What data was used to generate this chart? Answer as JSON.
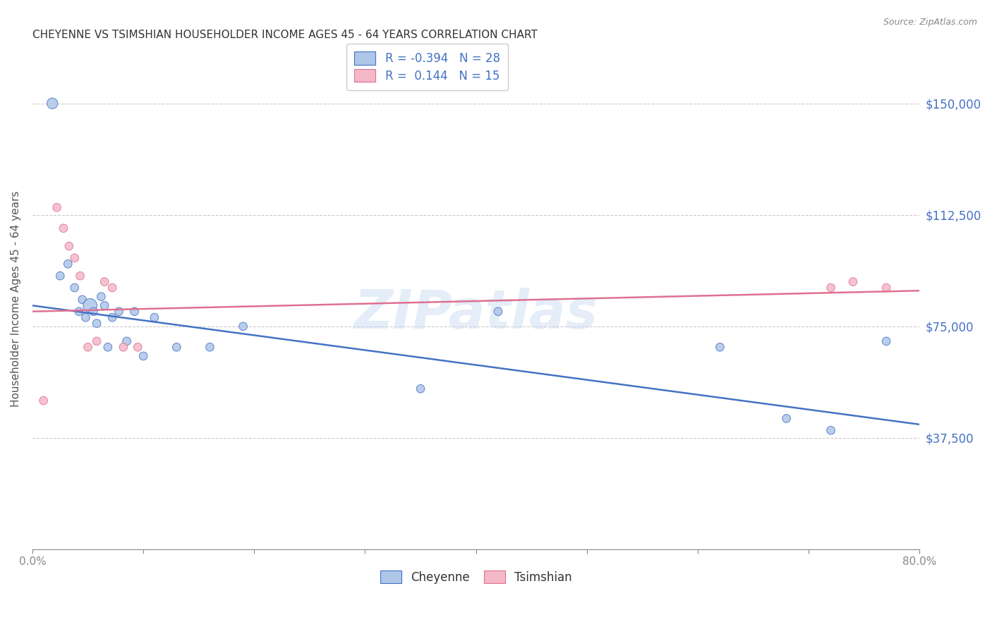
{
  "title": "CHEYENNE VS TSIMSHIAN HOUSEHOLDER INCOME AGES 45 - 64 YEARS CORRELATION CHART",
  "source": "Source: ZipAtlas.com",
  "ylabel": "Householder Income Ages 45 - 64 years",
  "ytick_labels": [
    "$37,500",
    "$75,000",
    "$112,500",
    "$150,000"
  ],
  "ytick_values": [
    37500,
    75000,
    112500,
    150000
  ],
  "ylim": [
    0,
    168750
  ],
  "xlim": [
    0.0,
    0.8
  ],
  "watermark": "ZIPatlas",
  "cheyenne_color": "#aec6e8",
  "tsimshian_color": "#f4b8c8",
  "cheyenne_edge_color": "#4472c4",
  "tsimshian_edge_color": "#e07090",
  "cheyenne_line_color": "#4472c4",
  "tsimshian_line_color": "#e07090",
  "cheyenne_R": -0.394,
  "cheyenne_N": 28,
  "tsimshian_R": 0.144,
  "tsimshian_N": 15,
  "cheyenne_x": [
    0.018,
    0.025,
    0.032,
    0.038,
    0.042,
    0.045,
    0.048,
    0.052,
    0.055,
    0.058,
    0.062,
    0.065,
    0.068,
    0.072,
    0.078,
    0.085,
    0.092,
    0.1,
    0.11,
    0.13,
    0.16,
    0.19,
    0.35,
    0.42,
    0.62,
    0.68,
    0.72,
    0.77
  ],
  "cheyenne_y": [
    150000,
    92000,
    96000,
    88000,
    80000,
    84000,
    78000,
    82000,
    80000,
    76000,
    85000,
    82000,
    68000,
    78000,
    80000,
    70000,
    80000,
    65000,
    78000,
    68000,
    68000,
    75000,
    54000,
    80000,
    68000,
    44000,
    40000,
    70000
  ],
  "cheyenne_sizes": [
    120,
    70,
    70,
    70,
    70,
    70,
    70,
    200,
    70,
    70,
    70,
    70,
    70,
    70,
    70,
    70,
    70,
    70,
    70,
    70,
    70,
    70,
    70,
    70,
    70,
    70,
    70,
    70
  ],
  "tsimshian_x": [
    0.01,
    0.022,
    0.028,
    0.033,
    0.038,
    0.043,
    0.05,
    0.058,
    0.065,
    0.072,
    0.082,
    0.095,
    0.72,
    0.74,
    0.77
  ],
  "tsimshian_y": [
    50000,
    115000,
    108000,
    102000,
    98000,
    92000,
    68000,
    70000,
    90000,
    88000,
    68000,
    68000,
    88000,
    90000,
    88000
  ],
  "tsimshian_sizes": [
    70,
    70,
    70,
    70,
    70,
    70,
    70,
    70,
    70,
    70,
    70,
    70,
    70,
    70,
    70
  ],
  "cheyenne_trendline_y0": 82000,
  "cheyenne_trendline_y1": 42000,
  "tsimshian_trendline_y0": 80000,
  "tsimshian_trendline_y1": 87000,
  "grid_color": "#cccccc",
  "tick_color": "#888888",
  "background_color": "#ffffff",
  "title_color": "#333333",
  "ylabel_color": "#555555",
  "source_color": "#888888",
  "right_label_color": "#4472c4",
  "bottom_label_color": "#333333"
}
